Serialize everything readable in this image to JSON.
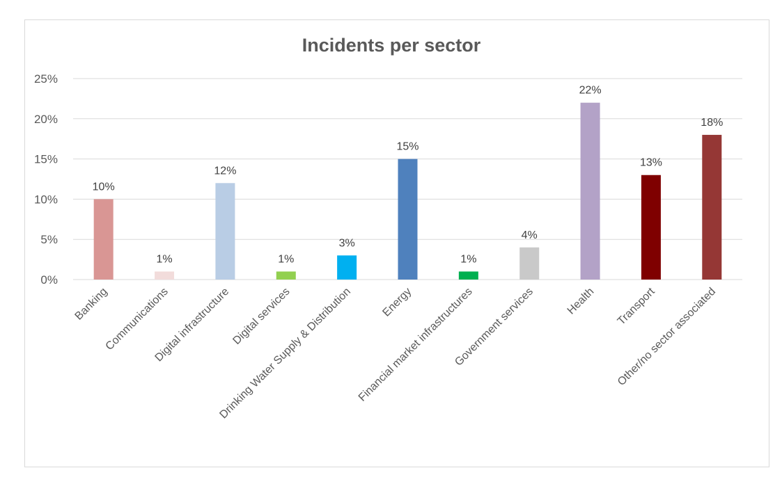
{
  "chart_data": {
    "type": "bar",
    "title": "Incidents per sector",
    "xlabel": "",
    "ylabel": "",
    "categories": [
      "Banking",
      "Communications",
      "Digital infrastructure",
      "Digital services",
      "Drinking Water Supply & Distribution",
      "Energy",
      "Financial market infrastructures",
      "Government services",
      "Health",
      "Transport",
      "Other/no sector associated"
    ],
    "values": [
      10,
      1,
      12,
      1,
      3,
      15,
      1,
      4,
      22,
      13,
      18
    ],
    "data_labels": [
      "10%",
      "1%",
      "12%",
      "1%",
      "3%",
      "15%",
      "1%",
      "4%",
      "22%",
      "13%",
      "18%"
    ],
    "colors": [
      "#d99694",
      "#f2dcdb",
      "#b9cde5",
      "#92d050",
      "#00b0f0",
      "#4f81bd",
      "#00b050",
      "#c9c9c9",
      "#b3a2c7",
      "#7f0000",
      "#953735"
    ],
    "yticks": [
      "0%",
      "5%",
      "10%",
      "15%",
      "20%",
      "25%"
    ],
    "ylim": [
      0,
      25
    ],
    "grid": true,
    "legend": "none"
  }
}
